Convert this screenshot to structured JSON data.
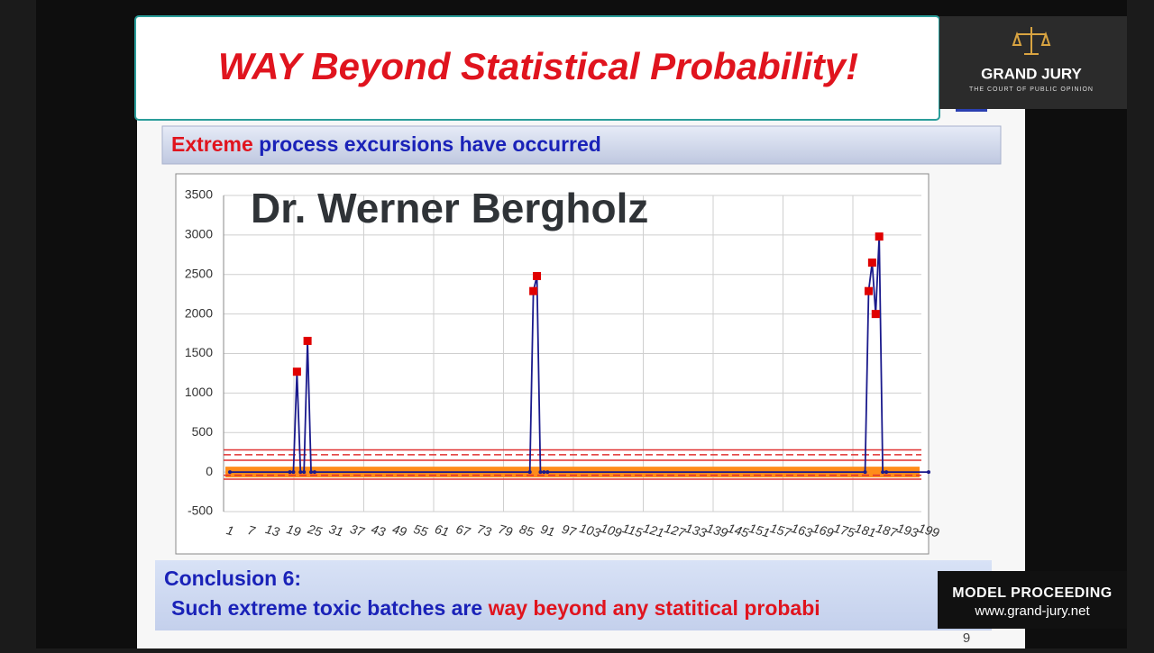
{
  "header": {
    "title": "WAY Beyond Statistical Probability!"
  },
  "logo": {
    "name": "GRAND JURY",
    "tagline": "THE COURT OF PUBLIC OPINION"
  },
  "slide": {
    "heading": {
      "emphasis": "Extreme",
      "rest": "process excursions have occurred"
    },
    "speaker": "Dr. Werner Bergholz",
    "conclusion": {
      "title": "Conclusion 6:",
      "text": "Such extreme toxic batches are",
      "emphasis": "way beyond any statitical probabi"
    },
    "page_number": "9"
  },
  "overlay": {
    "label": "MODEL PROCEEDING",
    "url": "www.grand-jury.net"
  },
  "chart_data": {
    "type": "line",
    "x": [
      1,
      18,
      19,
      20,
      21,
      22,
      23,
      24,
      25,
      86,
      87,
      88,
      89,
      90,
      91,
      181,
      182,
      183,
      184,
      185,
      186,
      187,
      199
    ],
    "series": [
      {
        "color": "#1a1a8c",
        "values": [
          0,
          0,
          0,
          1270,
          0,
          0,
          1660,
          0,
          0,
          0,
          2290,
          2480,
          0,
          0,
          0,
          0,
          2290,
          2650,
          2000,
          2980,
          0,
          0,
          0
        ]
      }
    ],
    "marker_color": "#e00000",
    "band_color": "#ff8c1a",
    "reference_lines": [
      280,
      220,
      150,
      -40,
      -90
    ],
    "reference_color": "#e03030",
    "xlim": [
      0,
      200
    ],
    "xticks": [
      1,
      7,
      13,
      19,
      25,
      31,
      37,
      43,
      49,
      55,
      61,
      67,
      73,
      79,
      85,
      91,
      97,
      103,
      109,
      115,
      121,
      127,
      133,
      139,
      145,
      151,
      157,
      163,
      169,
      175,
      181,
      187,
      193,
      199
    ],
    "ylim": [
      -500,
      3500
    ],
    "yticks": [
      -500,
      0,
      500,
      1000,
      1500,
      2000,
      2500,
      3000,
      3500
    ],
    "grid": true
  }
}
